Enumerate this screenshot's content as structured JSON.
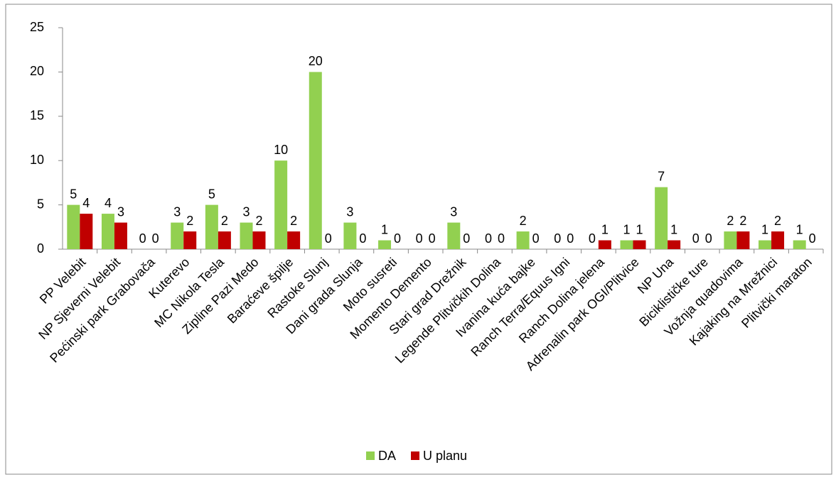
{
  "chart_data": {
    "type": "bar",
    "categories": [
      "PP Velebit",
      "NP Sjeverni Velebit",
      "Pećinski park Grabovača",
      "Kuterevo",
      "MC Nikola Tesla",
      "Zipline Pazi Medo",
      "Baraćeve špilje",
      "Rastoke Slunj",
      "Dani grada Slunja",
      "Moto susreti",
      "Momento Demento",
      "Stari grad Drežnik",
      "Legende Plitvičkih Dolina",
      "Ivanina kuća bajke",
      "Ranch Terra/Equus Igni",
      "Ranch Dolina jelena",
      "Adrenalin park OGI/Plitvice",
      "NP Una",
      "Biciklističke ture",
      "Vožnja quadovima",
      "Kajaking na Mrežnici",
      "Plitvički maraton"
    ],
    "series": [
      {
        "name": "DA",
        "color": "#92d050",
        "values": [
          5,
          4,
          0,
          3,
          5,
          3,
          10,
          20,
          3,
          1,
          0,
          3,
          0,
          2,
          0,
          0,
          1,
          7,
          0,
          2,
          1,
          1
        ]
      },
      {
        "name": "U planu",
        "color": "#c00000",
        "values": [
          4,
          3,
          0,
          2,
          2,
          2,
          2,
          0,
          0,
          0,
          0,
          0,
          0,
          0,
          0,
          1,
          1,
          1,
          0,
          2,
          2,
          0
        ]
      }
    ],
    "ylim": [
      0,
      25
    ],
    "yticks": [
      0,
      5,
      10,
      15,
      20,
      25
    ],
    "grid": false,
    "legend": "bottom"
  }
}
